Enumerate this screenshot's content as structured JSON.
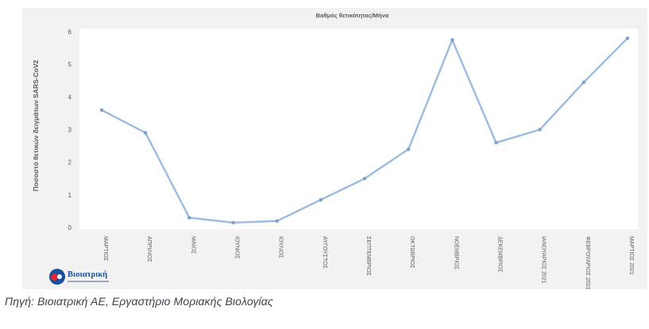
{
  "chart_data": {
    "type": "line",
    "title": "Βαθμός θετικότητας/Μήνα",
    "ylabel": "Ποσοστό θετικών δειγμάτων SARS-CoV2",
    "xlabel": "",
    "ylim": [
      0,
      6
    ],
    "yticks": [
      "0",
      "1",
      "2",
      "3",
      "4",
      "5",
      "6"
    ],
    "grid": false,
    "categories": [
      "ΜΑΡΤΙΟΣ",
      "ΑΠΡΙΛΙΟΣ",
      "ΜΑΙΟΣ",
      "ΙΟΥΝΙΟΣ",
      "ΙΟΥΛΙΟΣ",
      "ΑΥΓΟΥΣΤΟΣ",
      "ΣΕΠΤΕΜΒΡΙΟΣ",
      "ΟΚΤΩΒΡΙΟΣ",
      "ΝΟΕΜΒΡΙΟΣ",
      "ΔΕΚΕΜΒΡΙΟΣ",
      "ΙΑΝΟΥΑΡΙΟΣ 2021",
      "ΦΕΒΡΟΥΑΡΙΟΣ 2021",
      "ΜΑΡΤΙΟΣ 2021"
    ],
    "values": [
      3.6,
      2.9,
      0.3,
      0.15,
      0.2,
      0.85,
      1.5,
      2.4,
      5.75,
      2.6,
      3.0,
      4.45,
      5.8
    ],
    "line_color": "#9bbbe0",
    "marker_color": "#7aa0cc"
  },
  "logo": {
    "text": "Βιοιατρική"
  },
  "caption": "Πηγή: Βιοιατρική ΑΕ, Εργαστήριο Μοριακής Βιολογίας"
}
